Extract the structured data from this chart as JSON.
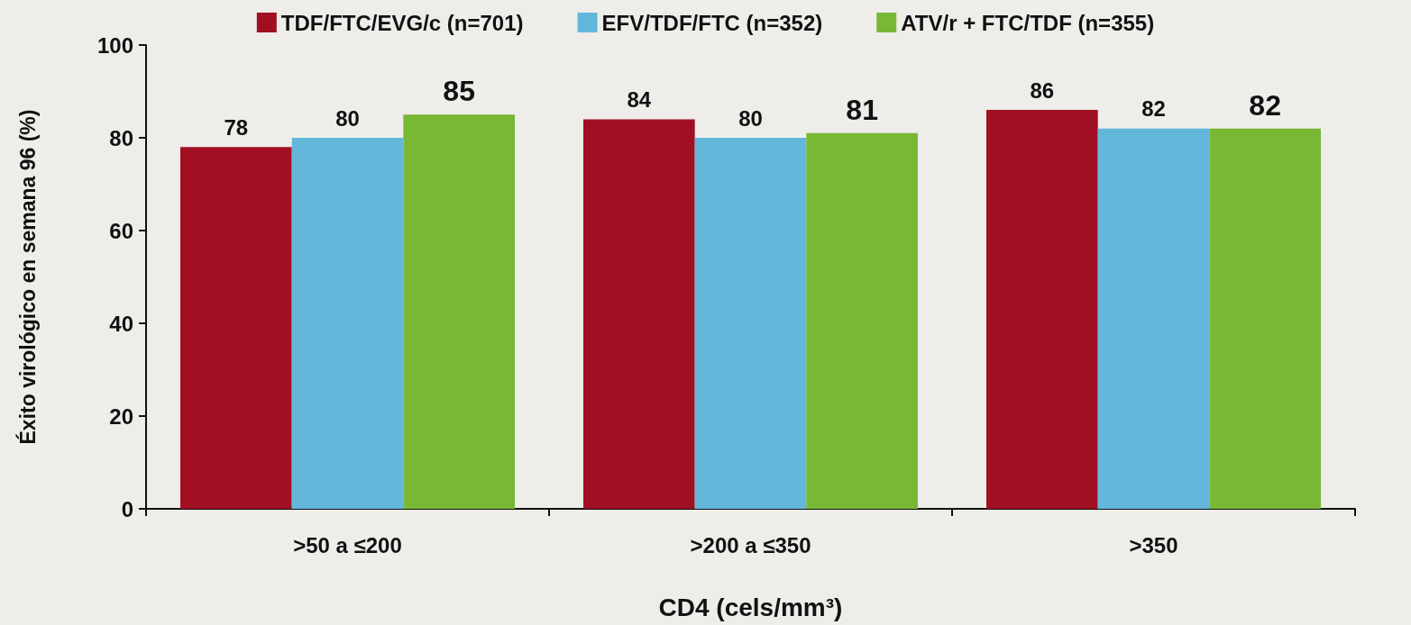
{
  "chart_data": {
    "type": "bar",
    "xlabel": "CD4 (cels/mm³)",
    "ylabel": "Éxito virológico en semana 96 (%)",
    "categories": [
      ">50 a ≤200",
      ">200 a ≤350",
      ">350"
    ],
    "series": [
      {
        "name": "TDF/FTC/EVG/c (n=701)",
        "color": "#a00f22",
        "values": [
          78,
          84,
          86
        ]
      },
      {
        "name": "EFV/TDF/FTC (n=352)",
        "color": "#62b7db",
        "values": [
          80,
          80,
          82
        ]
      },
      {
        "name": "ATV/r + FTC/TDF (n=355)",
        "color": "#78b834",
        "values": [
          85,
          81,
          82
        ]
      }
    ],
    "ylim": [
      0,
      100
    ],
    "yticks": [
      0,
      20,
      40,
      60,
      80,
      100
    ],
    "grid": false,
    "legend": "top",
    "data_labels": true
  }
}
